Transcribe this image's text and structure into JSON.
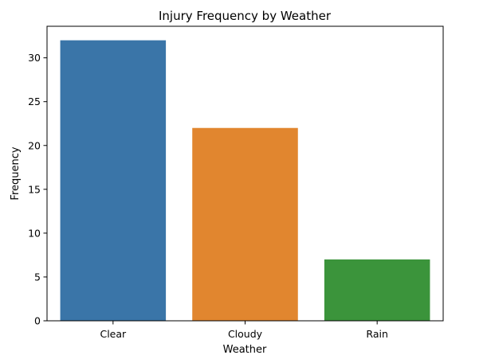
{
  "chart_data": {
    "type": "bar",
    "title": "Injury Frequency by Weather",
    "xlabel": "Weather",
    "ylabel": "Frequency",
    "categories": [
      "Clear",
      "Cloudy",
      "Rain"
    ],
    "values": [
      32,
      22,
      7
    ],
    "colors": [
      "#3a75a8",
      "#e1862f",
      "#3b943b"
    ],
    "ylim": [
      0,
      33.6
    ],
    "yticks": [
      0,
      5,
      10,
      15,
      20,
      25,
      30
    ],
    "grid": false
  }
}
